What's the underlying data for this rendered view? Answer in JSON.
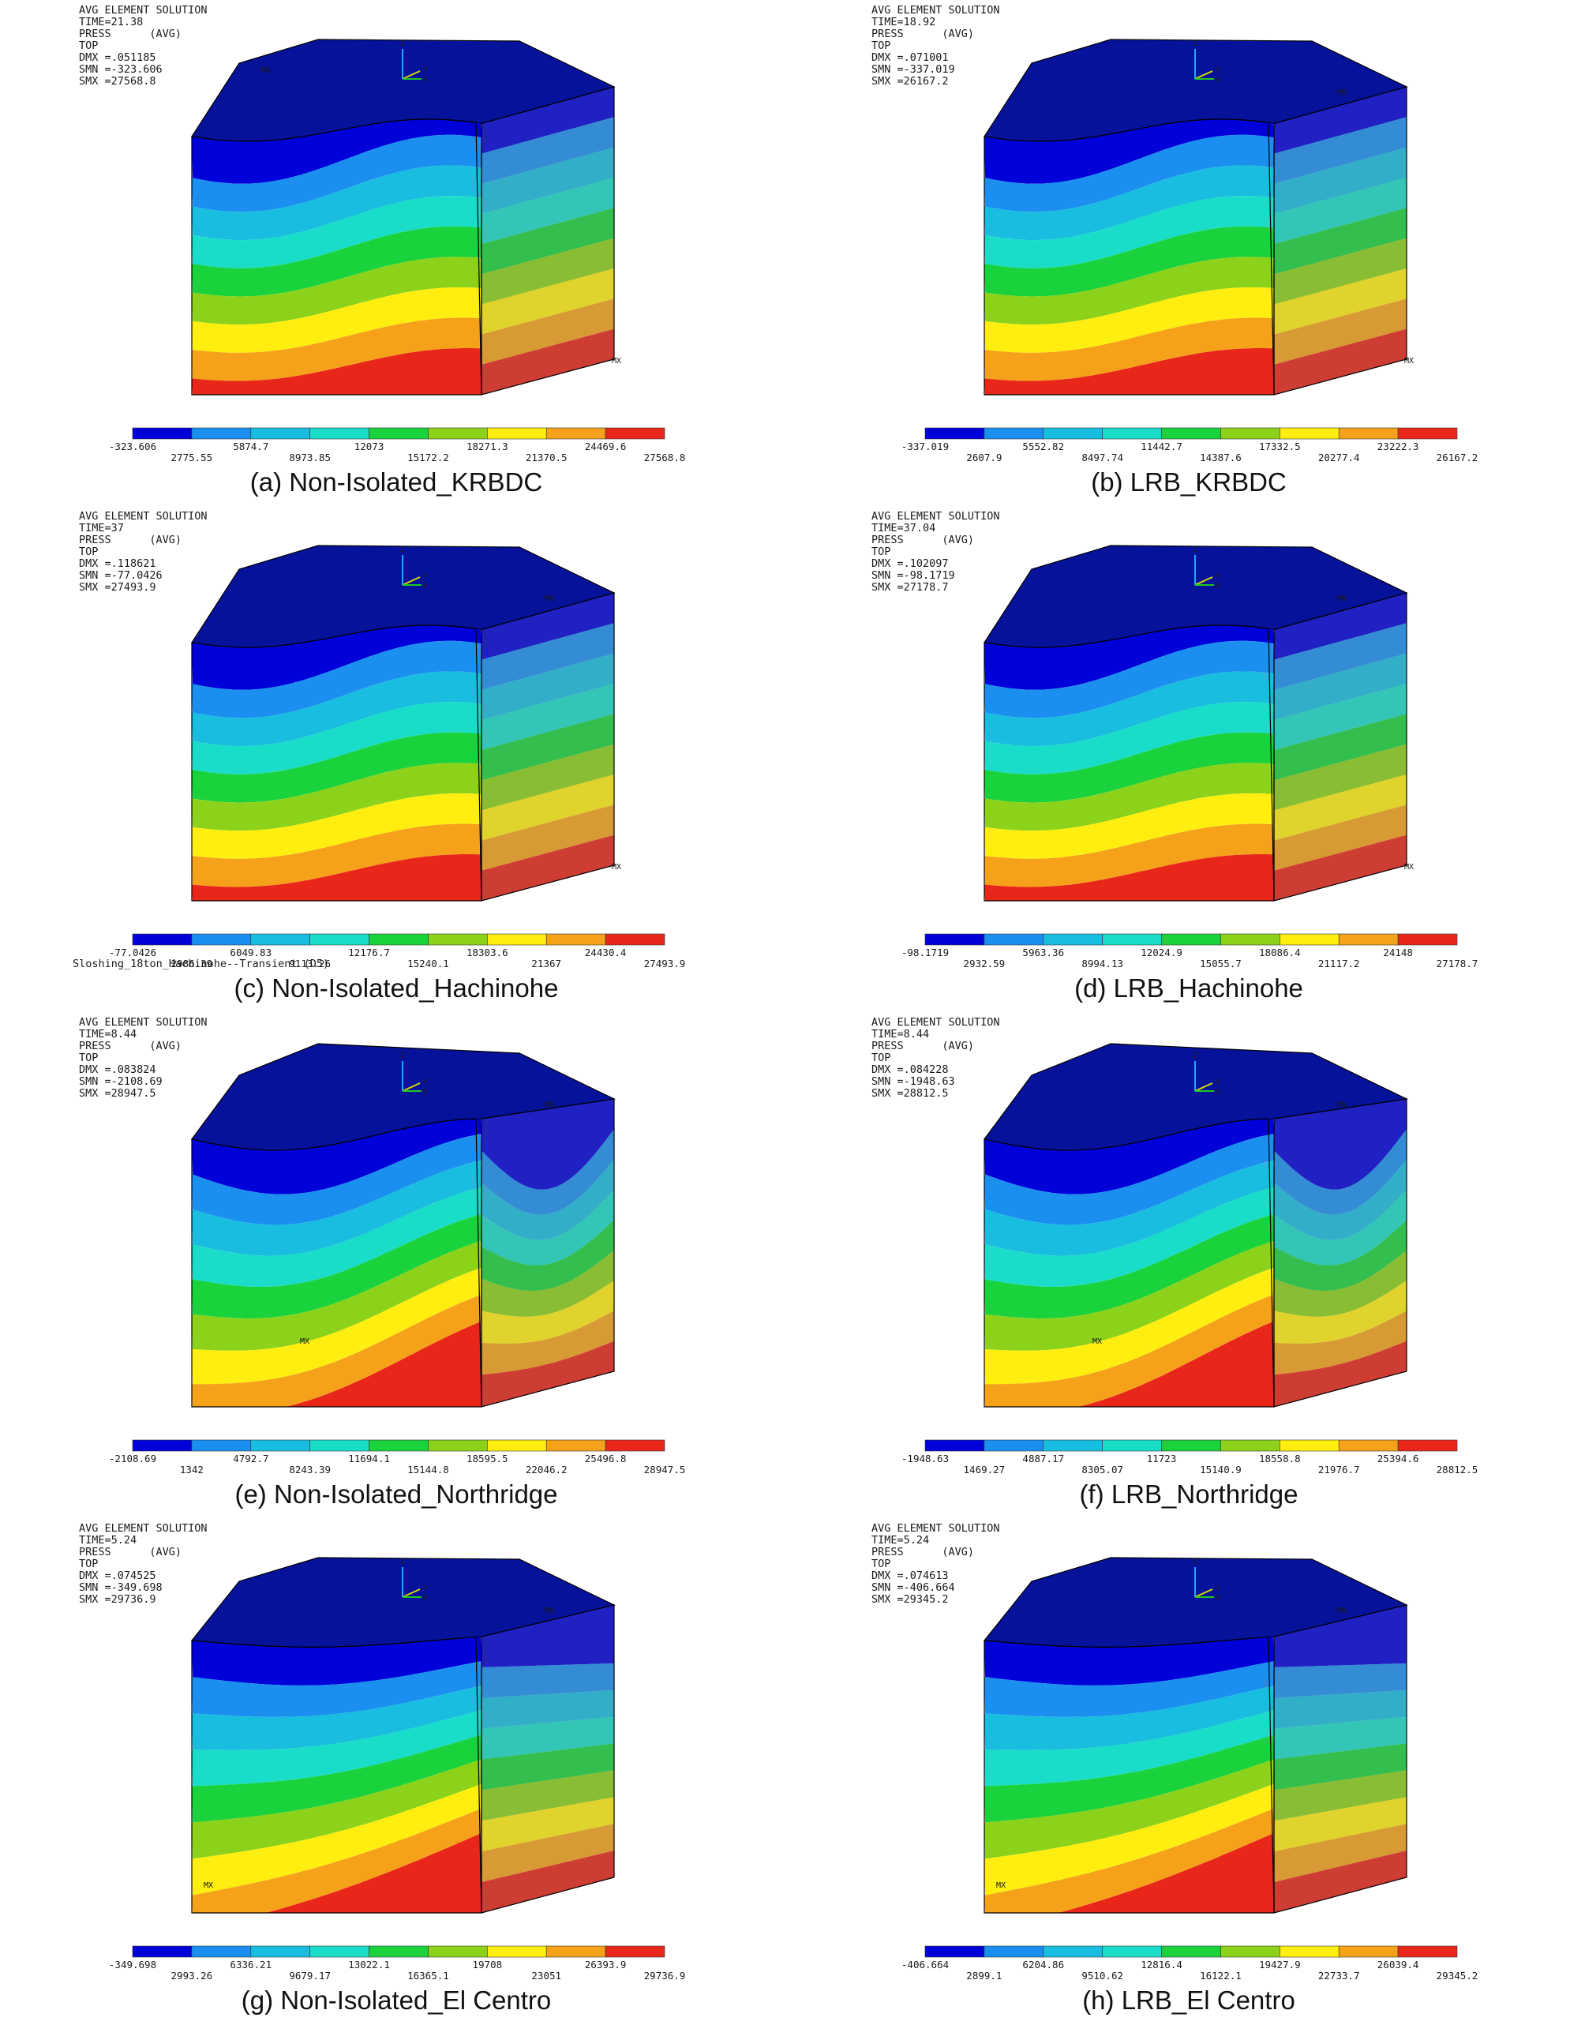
{
  "colormap": [
    "#0000d9",
    "#1a8ff0",
    "#19bde0",
    "#19ddc8",
    "#1ad23c",
    "#8cd21a",
    "#ffee10",
    "#f5a21a",
    "#e8261a"
  ],
  "panels": [
    {
      "caption": "(a) Non-Isolated_KRBDC",
      "info": [
        "AVG ELEMENT SOLUTION",
        "TIME=21.38",
        "PRESS      (AVG)",
        "TOP",
        "DMX =.051185",
        "SMN =-323.606",
        "SMX =27568.8"
      ],
      "colorbar_top": [
        "-323.606",
        "5874.7",
        "12073",
        "18271.3",
        "24469.6"
      ],
      "colorbar_bottom": [
        "2775.55",
        "8973.85",
        "15172.2",
        "21370.5",
        "27568.8"
      ],
      "markers": [
        "MN",
        "MX"
      ],
      "wave": "mild"
    },
    {
      "caption": "(b) LRB_KRBDC",
      "info": [
        "AVG ELEMENT SOLUTION",
        "TIME=18.92",
        "PRESS      (AVG)",
        "TOP",
        "DMX =.071001",
        "SMN =-337.019",
        "SMX =26167.2"
      ],
      "colorbar_top": [
        "-337.019",
        "5552.82",
        "11442.7",
        "17332.5",
        "23222.3"
      ],
      "colorbar_bottom": [
        "2607.9",
        "8497.74",
        "14387.6",
        "20277.4",
        "26167.2"
      ],
      "markers": [
        "MN",
        "MX"
      ],
      "wave": "mild"
    },
    {
      "caption": "(c) Non-Isolated_Hachinohe",
      "info": [
        "AVG ELEMENT SOLUTION",
        "TIME=37",
        "PRESS      (AVG)",
        "TOP",
        "DMX =.118621",
        "SMN =-77.0426",
        "SMX =27493.9"
      ],
      "colorbar_top": [
        "-77.0426",
        "6049.83",
        "12176.7",
        "18303.6",
        "24430.4"
      ],
      "colorbar_bottom": [
        "2986.39",
        "9113.26",
        "15240.1",
        "21367",
        "27493.9"
      ],
      "markers": [
        "MN",
        "MX"
      ],
      "footer": "Sloshing_18ton_Hachinohe--Transient (D5)",
      "wave": "mild"
    },
    {
      "caption": "(d) LRB_Hachinohe",
      "info": [
        "AVG ELEMENT SOLUTION",
        "TIME=37.04",
        "PRESS      (AVG)",
        "TOP",
        "DMX =.102097",
        "SMN =-98.1719",
        "SMX =27178.7"
      ],
      "colorbar_top": [
        "-98.1719",
        "5963.36",
        "12024.9",
        "18086.4",
        "24148"
      ],
      "colorbar_bottom": [
        "2932.59",
        "8994.13",
        "15055.7",
        "21117.2",
        "27178.7"
      ],
      "markers": [
        "MN",
        "MX"
      ],
      "wave": "mild"
    },
    {
      "caption": "(e) Non-Isolated_Northridge",
      "info": [
        "AVG ELEMENT SOLUTION",
        "TIME=8.44",
        "PRESS      (AVG)",
        "TOP",
        "DMX =.083824",
        "SMN =-2108.69",
        "SMX =28947.5"
      ],
      "colorbar_top": [
        "-2108.69",
        "4792.7",
        "11694.1",
        "18595.5",
        "25496.8"
      ],
      "colorbar_bottom": [
        "1342",
        "8243.39",
        "15144.8",
        "22046.2",
        "28947.5"
      ],
      "markers": [
        "MN",
        "MX"
      ],
      "wave": "strong"
    },
    {
      "caption": "(f) LRB_Northridge",
      "info": [
        "AVG ELEMENT SOLUTION",
        "TIME=8.44",
        "PRESS      (AVG)",
        "TOP",
        "DMX =.084228",
        "SMN =-1948.63",
        "SMX =28812.5"
      ],
      "colorbar_top": [
        "-1948.63",
        "4887.17",
        "11723",
        "18558.8",
        "25394.6"
      ],
      "colorbar_bottom": [
        "1469.27",
        "8305.07",
        "15140.9",
        "21976.7",
        "28812.5"
      ],
      "markers": [
        "MN",
        "MX"
      ],
      "wave": "strong"
    },
    {
      "caption": "(g) Non-Isolated_El Centro",
      "info": [
        "AVG ELEMENT SOLUTION",
        "TIME=5.24",
        "PRESS      (AVG)",
        "TOP",
        "DMX =.074525",
        "SMN =-349.698",
        "SMX =29736.9"
      ],
      "colorbar_top": [
        "-349.698",
        "6336.21",
        "13022.1",
        "19708",
        "26393.9"
      ],
      "colorbar_bottom": [
        "2993.26",
        "9679.17",
        "16365.1",
        "23051",
        "29736.9"
      ],
      "markers": [
        "MN",
        "MX"
      ],
      "wave": "tilt"
    },
    {
      "caption": "(h) LRB_El Centro",
      "info": [
        "AVG ELEMENT SOLUTION",
        "TIME=5.24",
        "PRESS      (AVG)",
        "TOP",
        "DMX =.074613",
        "SMN =-406.664",
        "SMX =29345.2"
      ],
      "colorbar_top": [
        "-406.664",
        "6204.86",
        "12816.4",
        "19427.9",
        "26039.4"
      ],
      "colorbar_bottom": [
        "2899.1",
        "9510.62",
        "16122.1",
        "22733.7",
        "29345.2"
      ],
      "markers": [
        "MN",
        "MX"
      ],
      "wave": "tilt"
    }
  ]
}
